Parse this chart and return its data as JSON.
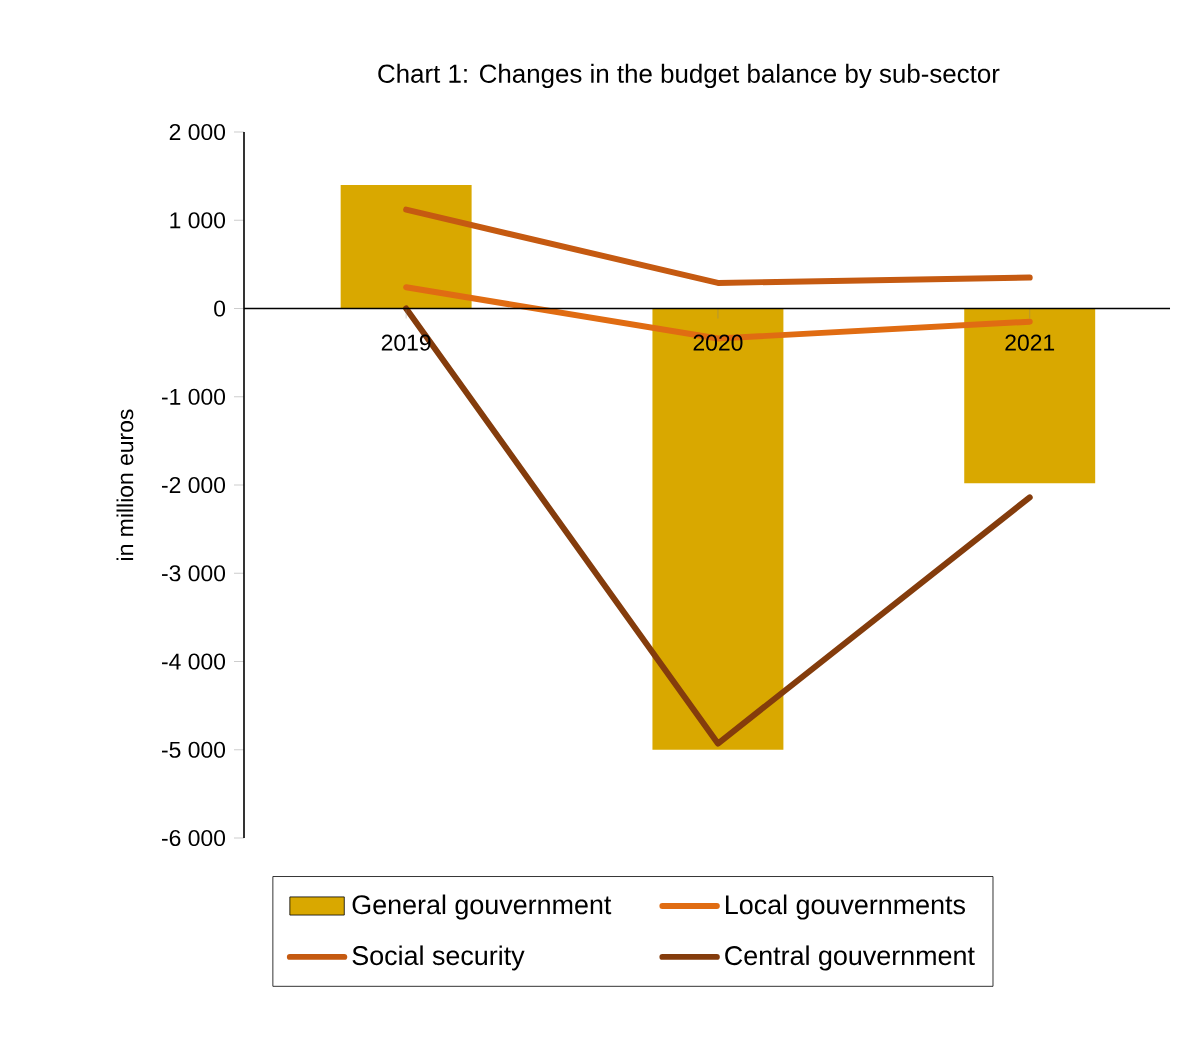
{
  "chart_data": {
    "type": "bar",
    "title": "Chart 1: Changes in the budget balance by sub-sector",
    "ylabel": "in million euros",
    "categories": [
      "2019",
      "2020",
      "2021"
    ],
    "series": [
      {
        "name": "General gouvernment",
        "color": "#d9a800",
        "values": [
          1400,
          -5000,
          -1980
        ]
      },
      {
        "name": "Local gouvernments",
        "type": "line",
        "color": "#e06c12",
        "values": [
          240,
          -340,
          -150
        ]
      },
      {
        "name": "Social security",
        "type": "line",
        "color": "#c55a11",
        "values": [
          1120,
          290,
          350
        ]
      },
      {
        "name": "Central gouvernment",
        "type": "line",
        "color": "#843c0c",
        "values": [
          0,
          -4930,
          -2140
        ]
      }
    ],
    "ylim": [
      -6000,
      2000
    ],
    "yticks": [
      {
        "value": -6000,
        "label": "-6 000"
      },
      {
        "value": -5000,
        "label": "-5 000"
      },
      {
        "value": -4000,
        "label": "-4 000"
      },
      {
        "value": -3000,
        "label": "-3 000"
      },
      {
        "value": -2000,
        "label": "-2 000"
      },
      {
        "value": -1000,
        "label": "-1 000"
      },
      {
        "value": 0,
        "label": "0"
      },
      {
        "value": 1000,
        "label": "1 000"
      },
      {
        "value": 2000,
        "label": "2 000"
      }
    ],
    "legend": "bottom",
    "marker": "none",
    "line_style": "solid"
  }
}
